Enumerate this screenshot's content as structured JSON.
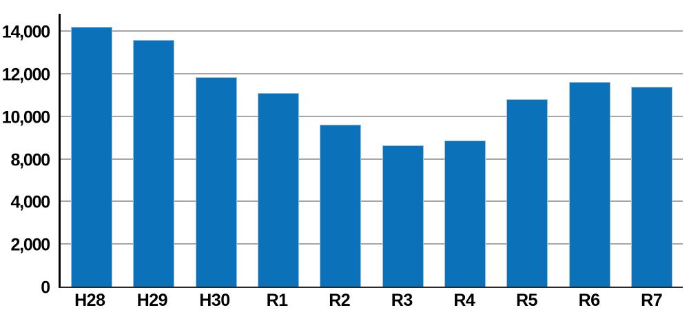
{
  "chart_data": {
    "type": "bar",
    "categories": [
      "H28",
      "H29",
      "H30",
      "R1",
      "R2",
      "R3",
      "R4",
      "R5",
      "R6",
      "R7"
    ],
    "values": [
      14200,
      13600,
      11850,
      11100,
      9600,
      8650,
      8850,
      10800,
      11600,
      11400
    ],
    "title": "",
    "xlabel": "",
    "ylabel": "",
    "y_tick_labels_bottom_to_top": [
      "0",
      "2,000",
      "4,000",
      "8,000",
      "10,000",
      "12,000",
      "14,000"
    ],
    "y_tick_values_bottom_to_top": [
      0,
      2000,
      4000,
      8000,
      10000,
      12000,
      14000
    ],
    "ylim_as_labeled": [
      0,
      14000
    ],
    "grid": true,
    "legend": false,
    "bar_color": "#0b72ba",
    "bar_edge_color": "#9fc1dd",
    "gridline_color": "#a6a6a6",
    "axis_color": "#000000",
    "label_color": "#000000"
  }
}
